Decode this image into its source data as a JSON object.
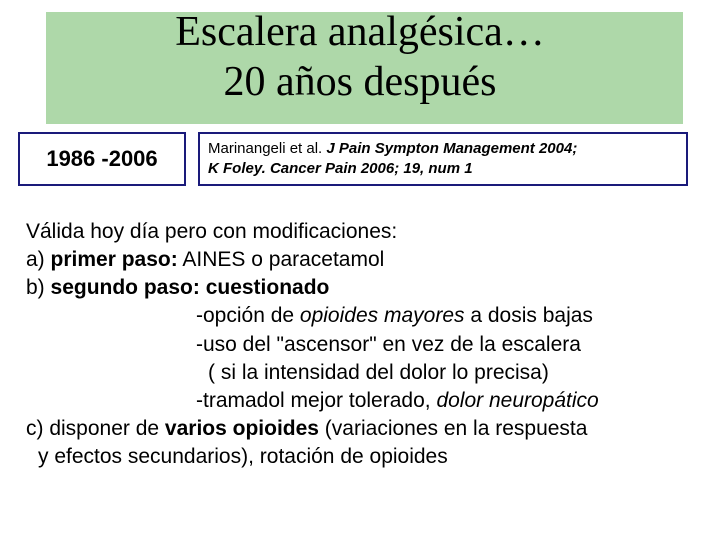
{
  "colors": {
    "title_band_bg": "#aed8a9",
    "box_border": "#1a1a7a",
    "page_bg": "#ffffff",
    "text": "#000000"
  },
  "typography": {
    "title_font": "Times New Roman",
    "title_fontsize_pt": 32,
    "body_font": "Verdana",
    "body_fontsize_pt": 16,
    "cite_fontsize_pt": 11,
    "year_fontsize_pt": 17
  },
  "title": {
    "line1": "Escalera analgésica…",
    "line2": "20 años después"
  },
  "year_box": {
    "label": "1986 -2006"
  },
  "citation": {
    "prefix": "Marinangeli et al. ",
    "ital1": "J Pain Sympton Management 2004;",
    "ital2": "K Foley. Cancer Pain 2006; 19, num 1"
  },
  "body": {
    "intro": "Válida hoy día pero con modificaciones:",
    "a_label": "a) ",
    "a_bold": "primer paso:",
    "a_rest": " AINES o paracetamol",
    "b_label": "b) ",
    "b_bold": "segundo paso: cuestionado",
    "sub1_pre": "-opción de ",
    "sub1_ital": "opioides mayores",
    "sub1_post": " a dosis bajas",
    "sub2": "-uso del \"ascensor\" en vez de la escalera",
    "sub2b": " ( si la intensidad del dolor lo precisa)",
    "sub3_pre": "-tramadol mejor tolerado, ",
    "sub3_ital": "dolor neuropático",
    "c_label": "c) ",
    "c_text1": "disponer de ",
    "c_bold": "varios opioides",
    "c_text2": " (variaciones en la respuesta",
    "c_line2": "y efectos secundarios), rotación de opioides"
  }
}
